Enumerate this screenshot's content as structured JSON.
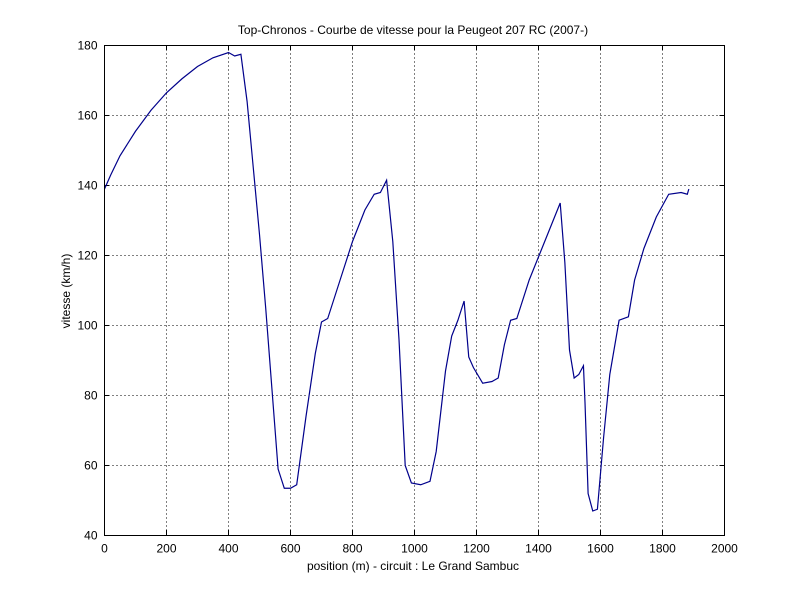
{
  "chart_data": {
    "type": "line",
    "title": "Top-Chronos - Courbe de vitesse pour la Peugeot 207 RC (2007-)",
    "xlabel": "position (m) - circuit : Le Grand Sambuc",
    "ylabel": "vitesse (km/h)",
    "xlim": [
      0,
      2000
    ],
    "ylim": [
      40,
      180
    ],
    "xticks": [
      0,
      200,
      400,
      600,
      800,
      1000,
      1200,
      1400,
      1600,
      1800,
      2000
    ],
    "yticks": [
      40,
      60,
      80,
      100,
      120,
      140,
      160,
      180
    ],
    "grid": true,
    "line_color": "#00008b",
    "series": [
      {
        "x": [
          0,
          20,
          50,
          100,
          150,
          200,
          250,
          300,
          350,
          400,
          420,
          440,
          460,
          480,
          500,
          520,
          540,
          560,
          580,
          600,
          620,
          650,
          680,
          700,
          720,
          760,
          800,
          840,
          870,
          890,
          910,
          930,
          950,
          970,
          990,
          1020,
          1050,
          1070,
          1100,
          1120,
          1140,
          1160,
          1175,
          1190,
          1220,
          1250,
          1270,
          1290,
          1310,
          1330,
          1370,
          1420,
          1470,
          1485,
          1500,
          1515,
          1530,
          1545,
          1550,
          1560,
          1575,
          1590,
          1610,
          1630,
          1660,
          1690,
          1710,
          1740,
          1780,
          1820,
          1860,
          1880,
          1885
        ],
        "y": [
          139,
          143,
          148.5,
          155.5,
          161.5,
          166.5,
          170.5,
          174,
          176.5,
          178,
          177,
          177.5,
          164,
          145,
          126,
          105,
          82,
          59,
          53.5,
          53.5,
          54.5,
          74,
          92,
          101,
          102,
          113,
          124,
          133,
          137.5,
          138,
          141.5,
          124,
          96,
          60,
          55,
          54.5,
          55.5,
          64,
          87,
          97,
          101.5,
          107,
          91,
          88,
          83.5,
          84,
          85,
          94.5,
          101.5,
          102,
          113,
          124,
          135,
          118,
          93,
          85,
          86,
          88.5,
          78,
          52,
          47,
          47.5,
          68,
          86,
          101.5,
          102.5,
          113,
          122,
          131,
          137.5,
          138,
          137.5,
          139
        ]
      }
    ]
  }
}
